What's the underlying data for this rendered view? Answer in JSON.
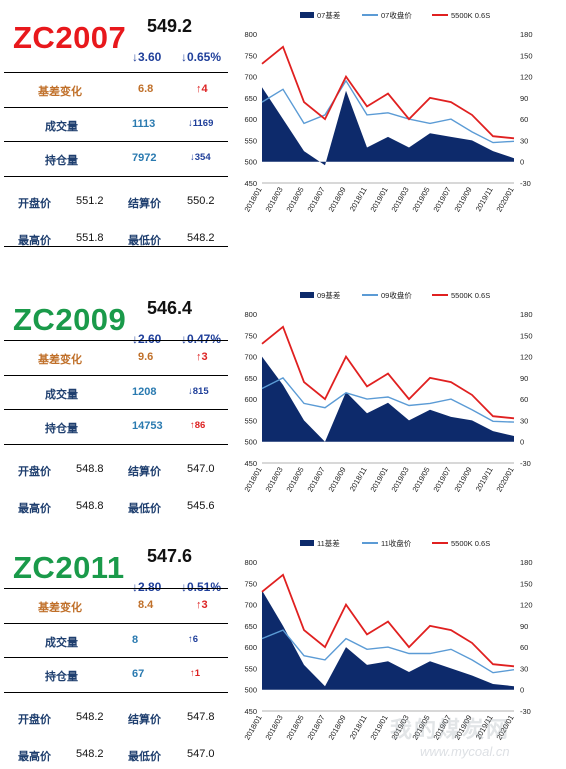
{
  "panels": [
    {
      "code": "ZC2007",
      "code_color": "#e8181c",
      "price": "549.2",
      "change_abs": "↓3.60",
      "change_pct": "↓0.65%",
      "basis_change_label": "基差变化",
      "basis_change_value": "6.8",
      "basis_change_delta": "↑4",
      "volume_label": "成交量",
      "volume_value": "1113",
      "volume_delta": "↓1169",
      "oi_label": "持仓量",
      "oi_value": "7972",
      "oi_delta": "↓354",
      "open_label": "开盘价",
      "open_value": "551.2",
      "settle_label": "结算价",
      "settle_value": "550.2",
      "high_label": "最高价",
      "high_value": "551.8",
      "low_label": "最低价",
      "low_value": "548.2"
    },
    {
      "code": "ZC2009",
      "code_color": "#1a9a4a",
      "price": "546.4",
      "change_abs": "↓2.60",
      "change_pct": "↓0.47%",
      "basis_change_label": "基差变化",
      "basis_change_value": "9.6",
      "basis_change_delta": "↑3",
      "volume_label": "成交量",
      "volume_value": "1208",
      "volume_delta": "↓815",
      "oi_label": "持仓量",
      "oi_value": "14753",
      "oi_delta": "↑86",
      "open_label": "开盘价",
      "open_value": "548.8",
      "settle_label": "结算价",
      "settle_value": "547.0",
      "high_label": "最高价",
      "high_value": "548.8",
      "low_label": "最低价",
      "low_value": "545.6"
    },
    {
      "code": "ZC2011",
      "code_color": "#1a9a4a",
      "price": "547.6",
      "change_abs": "↓2.80",
      "change_pct": "↓0.51%",
      "basis_change_label": "基差变化",
      "basis_change_value": "8.4",
      "basis_change_delta": "↑3",
      "volume_label": "成交量",
      "volume_value": "8",
      "volume_delta": "↑6",
      "oi_label": "持仓量",
      "oi_value": "67",
      "oi_delta": "↑1",
      "open_label": "开盘价",
      "open_value": "548.2",
      "settle_label": "结算价",
      "settle_value": "547.8",
      "high_label": "最高价",
      "high_value": "548.2",
      "low_label": "最低价",
      "low_value": "547.0"
    }
  ],
  "colors": {
    "basis": "#0d2a6b",
    "close": "#5b9bd5",
    "spot": "#e02020"
  },
  "watermark": {
    "cn": "我的煤炭网",
    "url": "www.mycoal.cn"
  },
  "chart_data": [
    {
      "type": "area",
      "categories": [
        "2018/01",
        "2018/03",
        "2018/05",
        "2018/07",
        "2018/09",
        "2018/11",
        "2019/01",
        "2019/03",
        "2019/05",
        "2019/07",
        "2019/09",
        "2019/11",
        "2020/01"
      ],
      "x_tick_labels": [
        "2018/01",
        "2018/03",
        "2018/05",
        "2018/07",
        "2018/09",
        "2018/11",
        "2019/01",
        "2019/03",
        "2019/05",
        "2019/07",
        "2019/09",
        "2019/11",
        "2020/01"
      ],
      "left_axis": {
        "ylim": [
          450,
          800
        ],
        "ticks": [
          "450",
          "500",
          "550",
          "600",
          "650",
          "700",
          "750",
          "800"
        ]
      },
      "right_axis": {
        "ylim": [
          -30,
          180
        ],
        "ticks": [
          "-30",
          "0",
          "30",
          "60",
          "90",
          "120",
          "150",
          "180"
        ]
      },
      "series": [
        {
          "name": "07基差",
          "axis": "right",
          "style": "area",
          "values": [
            105,
            60,
            15,
            -5,
            100,
            20,
            35,
            20,
            40,
            35,
            30,
            15,
            5
          ]
        },
        {
          "name": "07收盘价",
          "axis": "left",
          "style": "line",
          "values": [
            640,
            670,
            590,
            610,
            690,
            610,
            615,
            600,
            590,
            600,
            570,
            545,
            548
          ]
        },
        {
          "name": "5500K 0.6S",
          "axis": "left",
          "style": "line",
          "values": [
            730,
            770,
            640,
            600,
            700,
            630,
            660,
            600,
            650,
            640,
            610,
            560,
            555
          ]
        }
      ]
    },
    {
      "type": "area",
      "categories": [
        "2018/01",
        "2018/03",
        "2018/05",
        "2018/07",
        "2018/09",
        "2018/11",
        "2019/01",
        "2019/03",
        "2019/05",
        "2019/07",
        "2019/09",
        "2019/11",
        "2020/01"
      ],
      "x_tick_labels": [
        "2018/01",
        "2018/03",
        "2018/05",
        "2018/07",
        "2018/09",
        "2018/11",
        "2019/01",
        "2019/03",
        "2019/05",
        "2019/07",
        "2019/09",
        "2019/11",
        "2020/01"
      ],
      "left_axis": {
        "ylim": [
          450,
          800
        ],
        "ticks": [
          "450",
          "500",
          "550",
          "600",
          "650",
          "700",
          "750",
          "800"
        ]
      },
      "right_axis": {
        "ylim": [
          -30,
          180
        ],
        "ticks": [
          "-30",
          "0",
          "30",
          "60",
          "90",
          "120",
          "150",
          "180"
        ]
      },
      "series": [
        {
          "name": "09基差",
          "axis": "right",
          "style": "area",
          "values": [
            120,
            80,
            30,
            0,
            70,
            40,
            55,
            30,
            45,
            35,
            30,
            15,
            8
          ]
        },
        {
          "name": "09收盘价",
          "axis": "left",
          "style": "line",
          "values": [
            625,
            650,
            590,
            580,
            615,
            600,
            605,
            585,
            590,
            600,
            575,
            548,
            546
          ]
        },
        {
          "name": "5500K 0.6S",
          "axis": "left",
          "style": "line",
          "values": [
            730,
            770,
            640,
            600,
            700,
            630,
            660,
            600,
            650,
            640,
            610,
            560,
            555
          ]
        }
      ]
    },
    {
      "type": "area",
      "categories": [
        "2018/01",
        "2018/03",
        "2018/05",
        "2018/07",
        "2018/09",
        "2018/11",
        "2019/01",
        "2019/03",
        "2019/05",
        "2019/07",
        "2019/09",
        "2019/11",
        "2020/01"
      ],
      "x_tick_labels": [
        "2018/01",
        "2018/03",
        "2018/05",
        "2018/07",
        "2018/09",
        "2018/11",
        "2019/01",
        "2019/03",
        "2019/05",
        "2019/07",
        "2019/09",
        "2019/11",
        "2020/01"
      ],
      "left_axis": {
        "ylim": [
          450,
          800
        ],
        "ticks": [
          "450",
          "500",
          "550",
          "600",
          "650",
          "700",
          "750",
          "800"
        ]
      },
      "right_axis": {
        "ylim": [
          -30,
          180
        ],
        "ticks": [
          "-30",
          "0",
          "30",
          "60",
          "90",
          "120",
          "150",
          "180"
        ]
      },
      "series": [
        {
          "name": "11基差",
          "axis": "right",
          "style": "area",
          "values": [
            140,
            90,
            35,
            5,
            60,
            35,
            40,
            25,
            40,
            30,
            20,
            8,
            5
          ]
        },
        {
          "name": "11收盘价",
          "axis": "left",
          "style": "line",
          "values": [
            620,
            640,
            580,
            570,
            620,
            595,
            600,
            585,
            585,
            595,
            570,
            540,
            547
          ]
        },
        {
          "name": "5500K 0.6S",
          "axis": "left",
          "style": "line",
          "values": [
            730,
            770,
            640,
            600,
            700,
            630,
            660,
            600,
            650,
            640,
            610,
            560,
            555
          ]
        }
      ]
    }
  ]
}
